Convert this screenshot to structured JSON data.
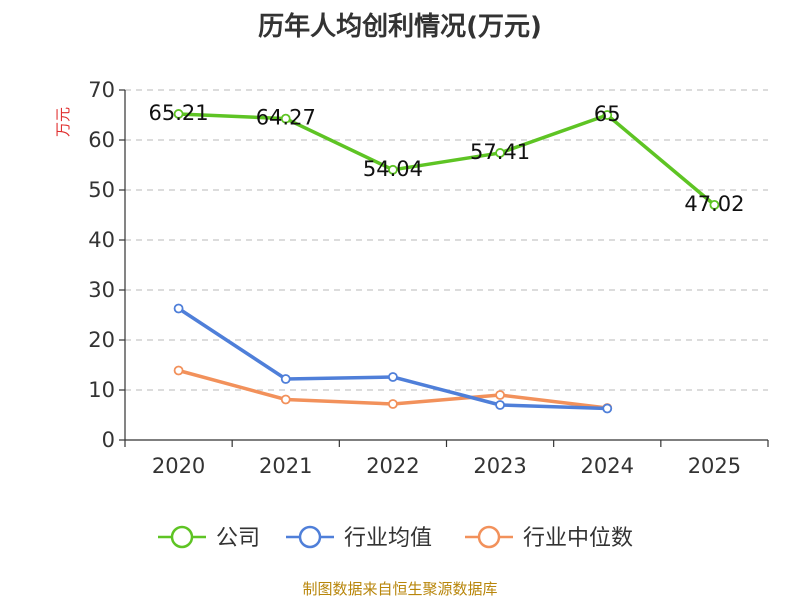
{
  "chart_data": {
    "type": "line",
    "title": "历年人均创利情况(万元)",
    "ylabel": "万元",
    "xlabel": "",
    "categories": [
      "2020",
      "2021",
      "2022",
      "2023",
      "2024",
      "2025"
    ],
    "ylim": [
      0,
      70
    ],
    "yticks": [
      0,
      10,
      20,
      30,
      40,
      50,
      60,
      70
    ],
    "grid": true,
    "legend_position": "bottom",
    "series": [
      {
        "name": "公司",
        "color": "#5ec424",
        "values": [
          65.21,
          64.27,
          54.04,
          57.41,
          65,
          47.02
        ],
        "labels": [
          "65.21",
          "64.27",
          "54.04",
          "57.41",
          "65",
          "47.02"
        ]
      },
      {
        "name": "行业均值",
        "color": "#4f7fd9",
        "values": [
          26.3,
          12.2,
          12.6,
          7.0,
          6.3,
          null
        ]
      },
      {
        "name": "行业中位数",
        "color": "#f2915b",
        "values": [
          13.9,
          8.1,
          7.2,
          9.0,
          6.4,
          null
        ]
      }
    ]
  },
  "source": "制图数据来自恒生聚源数据库"
}
